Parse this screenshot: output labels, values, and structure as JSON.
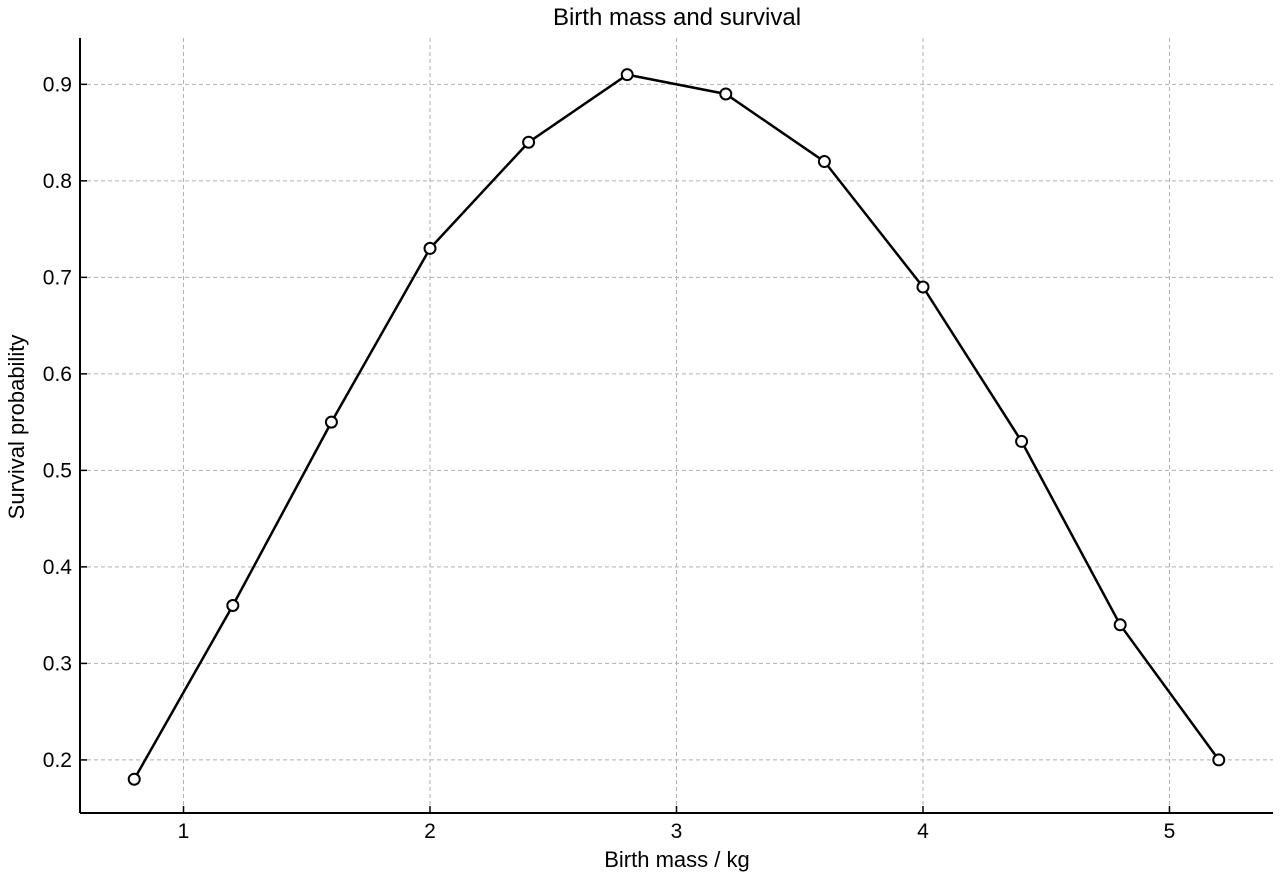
{
  "chart_data": {
    "type": "line",
    "title": "Birth mass and survival",
    "xlabel": "Birth mass / kg",
    "ylabel": "Survival probability",
    "xlim": [
      0.58,
      5.42
    ],
    "ylim": [
      0.145,
      0.948
    ],
    "xticks": [
      1,
      2,
      3,
      4,
      5
    ],
    "yticks": [
      0.2,
      0.3,
      0.4,
      0.5,
      0.6,
      0.7,
      0.8,
      0.9
    ],
    "grid": true,
    "series": [
      {
        "x": [
          0.8,
          1.2,
          1.6,
          2.0,
          2.4,
          2.8,
          3.2,
          3.6,
          4.0,
          4.4,
          4.8,
          5.2
        ],
        "y": [
          0.18,
          0.36,
          0.55,
          0.73,
          0.84,
          0.91,
          0.89,
          0.82,
          0.69,
          0.53,
          0.34,
          0.2
        ],
        "color": "#000000",
        "marker": "open-circle"
      }
    ]
  }
}
